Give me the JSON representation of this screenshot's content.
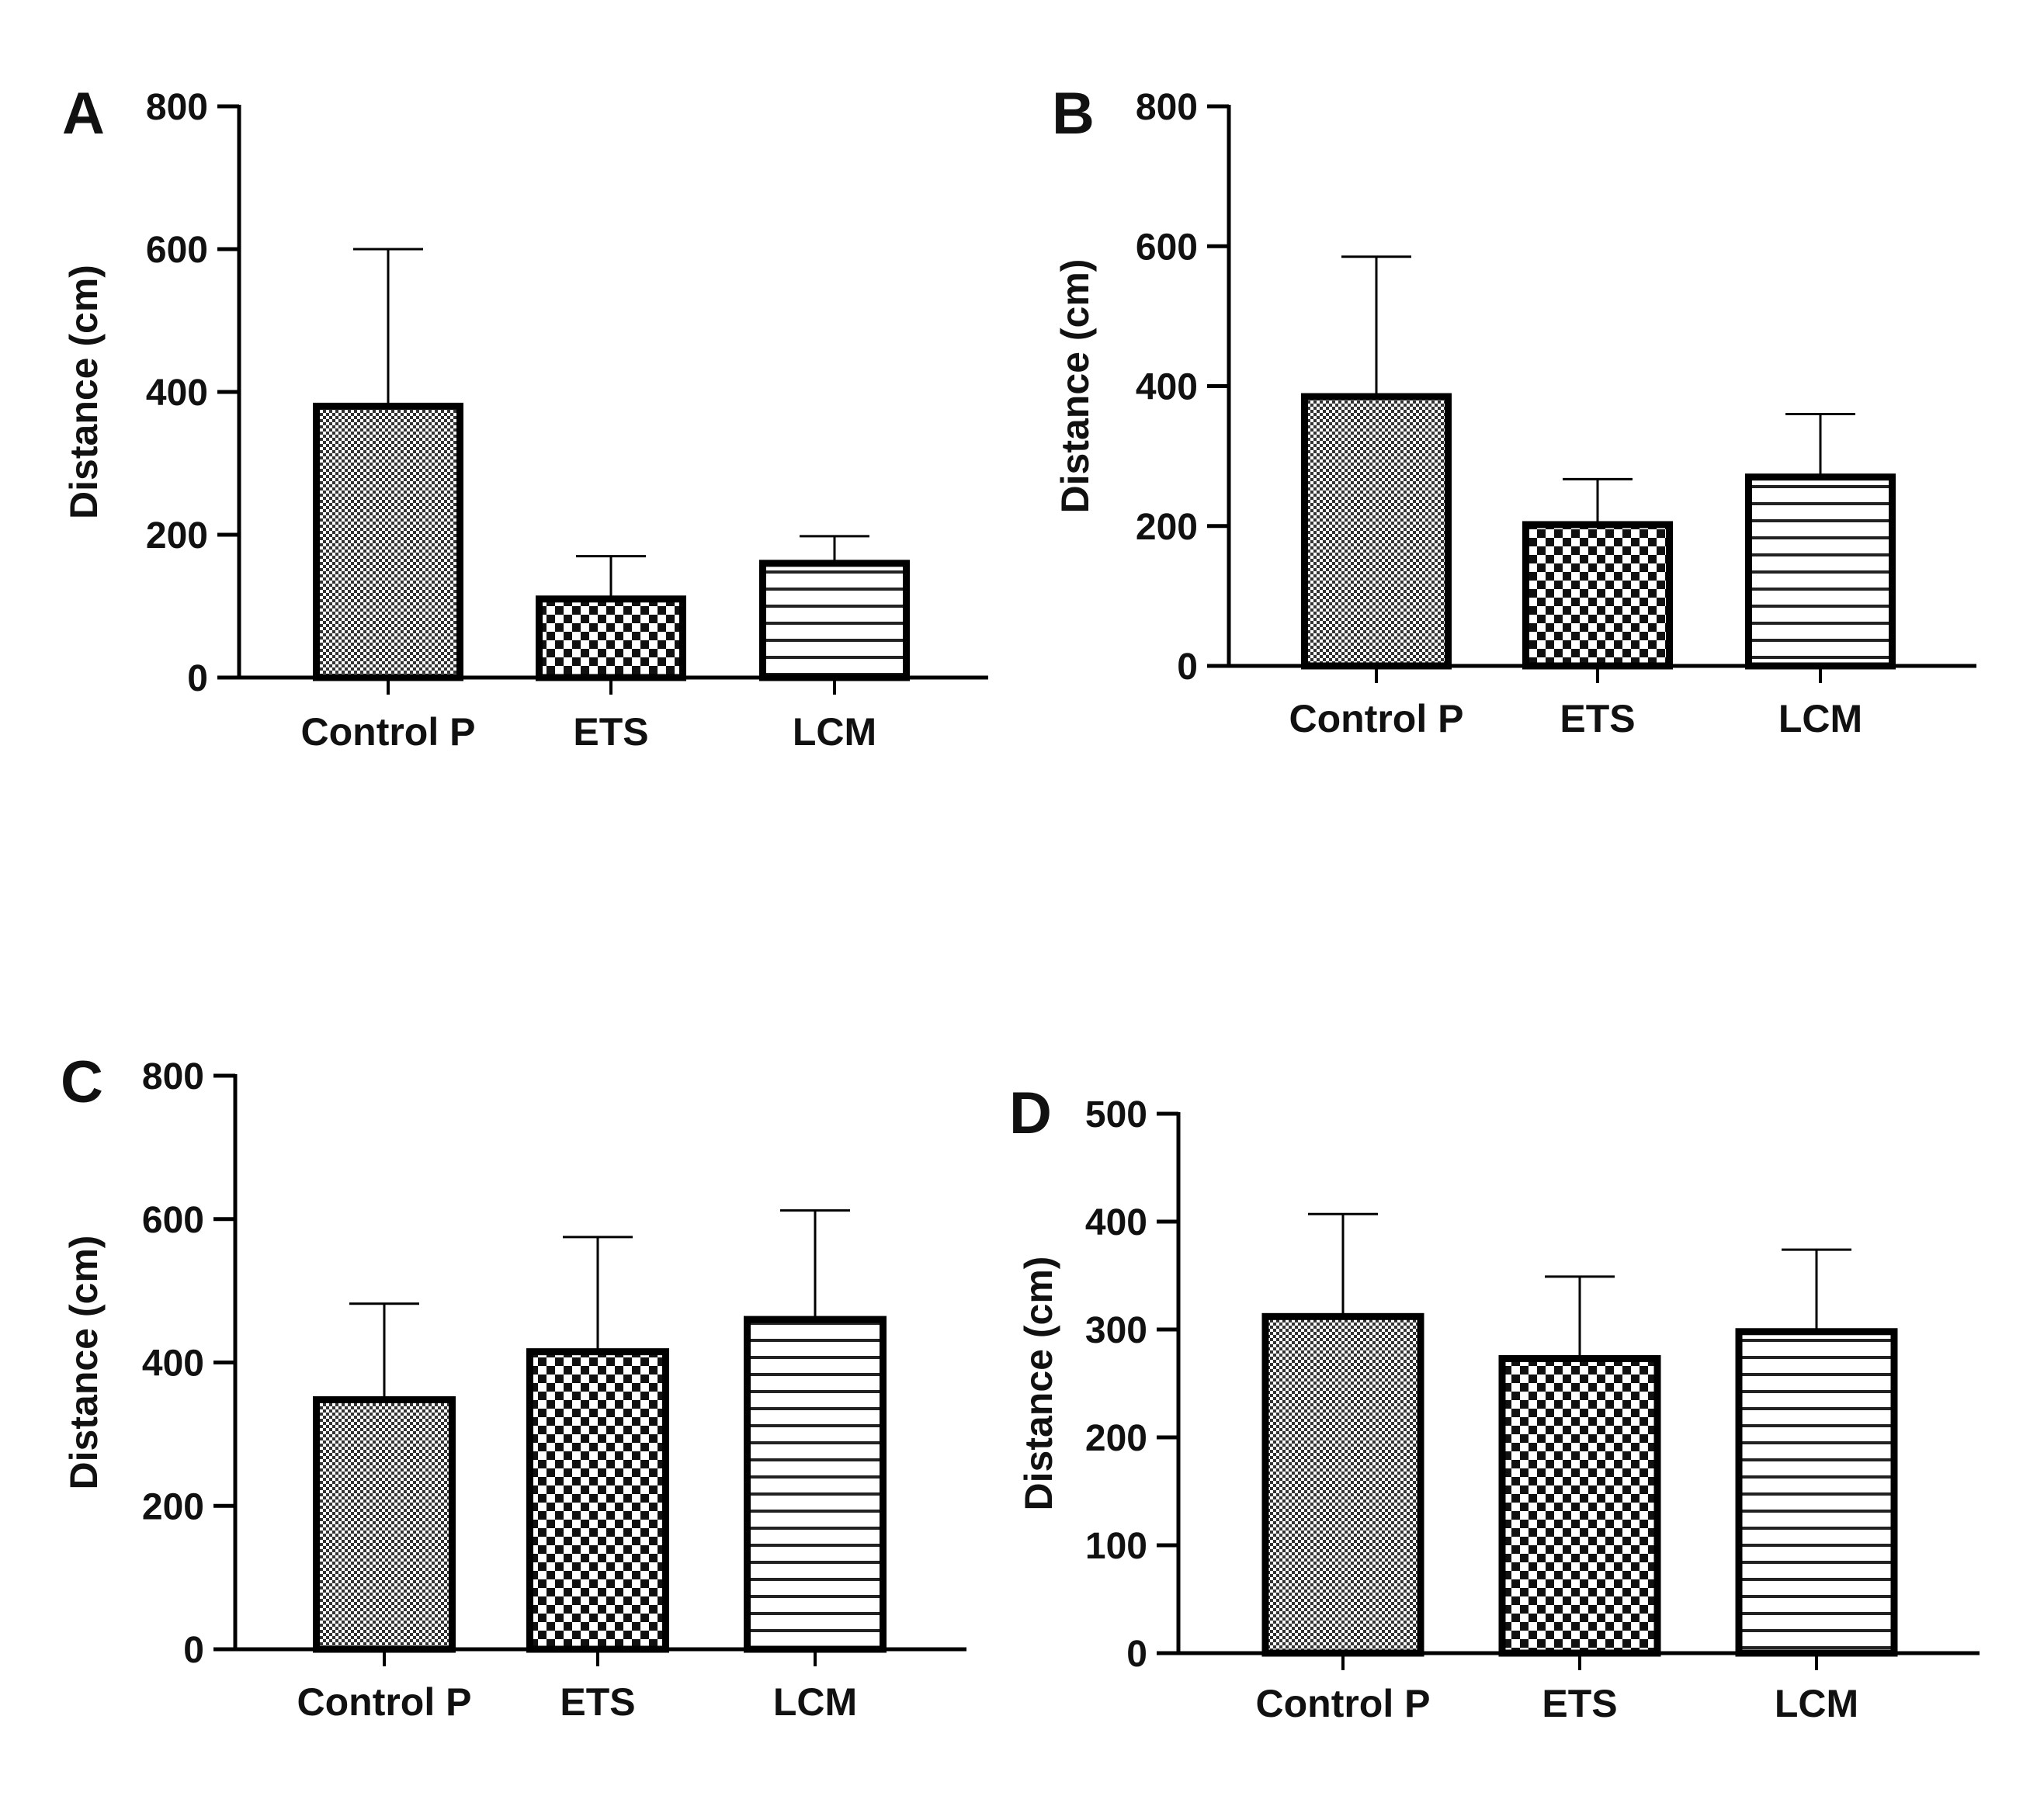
{
  "chart_data": [
    {
      "panel": "A",
      "type": "bar",
      "ylabel": "Distance (cm)",
      "ylim": [
        0,
        800
      ],
      "yticks": [
        "0",
        "200",
        "400",
        "600",
        "800"
      ],
      "categories": [
        "Control P",
        "ETS",
        "LCM"
      ],
      "patterns": [
        "fine-check",
        "coarse-check",
        "hstripes"
      ],
      "values": [
        380,
        110,
        160
      ],
      "error_upper": [
        600,
        170,
        198
      ]
    },
    {
      "panel": "B",
      "type": "bar",
      "ylabel": "Distance (cm)",
      "ylim": [
        0,
        800
      ],
      "yticks": [
        "0",
        "200",
        "400",
        "600",
        "800"
      ],
      "categories": [
        "Control P",
        "ETS",
        "LCM"
      ],
      "patterns": [
        "fine-check",
        "coarse-check",
        "hstripes"
      ],
      "values": [
        385,
        202,
        270
      ],
      "error_upper": [
        585,
        267,
        360
      ]
    },
    {
      "panel": "C",
      "type": "bar",
      "ylabel": "Distance (cm)",
      "ylim": [
        0,
        800
      ],
      "yticks": [
        "0",
        "200",
        "400",
        "600",
        "800"
      ],
      "categories": [
        "Control P",
        "ETS",
        "LCM"
      ],
      "patterns": [
        "fine-check",
        "coarse-check",
        "hstripes"
      ],
      "values": [
        348,
        415,
        460
      ],
      "error_upper": [
        482,
        575,
        612
      ]
    },
    {
      "panel": "D",
      "type": "bar",
      "ylabel": "Distance (cm)",
      "ylim": [
        0,
        500
      ],
      "yticks": [
        "0",
        "100",
        "200",
        "300",
        "400",
        "500"
      ],
      "categories": [
        "Control P",
        "ETS",
        "LCM"
      ],
      "patterns": [
        "fine-check",
        "coarse-check",
        "hstripes"
      ],
      "values": [
        312,
        273,
        298
      ],
      "error_upper": [
        407,
        349,
        374
      ]
    }
  ]
}
